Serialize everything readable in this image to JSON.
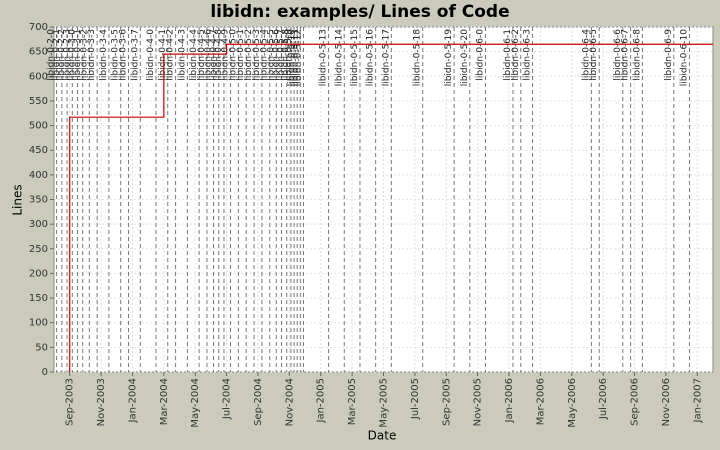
{
  "chart_data": {
    "type": "step",
    "title": "libidn: examples/ Lines of Code",
    "x_label": "Date",
    "y_label": "Lines",
    "series": [
      {
        "name": "Lines",
        "color": "#cc0000",
        "x": [
          "2003-09",
          "2003-09",
          "2004-03",
          "2004-07",
          "2007-02"
        ],
        "values": [
          0,
          517,
          645,
          665,
          665
        ]
      }
    ],
    "xlim": [
      "2003-08",
      "2007-02"
    ],
    "ylim": [
      0,
      700
    ],
    "yticks": [
      0,
      50,
      100,
      150,
      200,
      250,
      300,
      350,
      400,
      450,
      500,
      550,
      600,
      650,
      700
    ],
    "xticks": [
      {
        "value": "2003-09",
        "label": "Sep-2003"
      },
      {
        "value": "2003-11",
        "label": "Nov-2003"
      },
      {
        "value": "2004-01",
        "label": "Jan-2004"
      },
      {
        "value": "2004-03",
        "label": "Mar-2004"
      },
      {
        "value": "2004-05",
        "label": "May-2004"
      },
      {
        "value": "2004-07",
        "label": "Jul-2004"
      },
      {
        "value": "2004-09",
        "label": "Sep-2004"
      },
      {
        "value": "2004-11",
        "label": "Nov-2004"
      },
      {
        "value": "2005-01",
        "label": "Jan-2005"
      },
      {
        "value": "2005-03",
        "label": "Mar-2005"
      },
      {
        "value": "2005-05",
        "label": "May-2005"
      },
      {
        "value": "2005-07",
        "label": "Jul-2005"
      },
      {
        "value": "2005-09",
        "label": "Sep-2005"
      },
      {
        "value": "2005-11",
        "label": "Nov-2005"
      },
      {
        "value": "2006-01",
        "label": "Jan-2006"
      },
      {
        "value": "2006-03",
        "label": "Mar-2006"
      },
      {
        "value": "2006-05",
        "label": "May-2006"
      },
      {
        "value": "2006-07",
        "label": "Jul-2006"
      },
      {
        "value": "2006-09",
        "label": "Sep-2006"
      },
      {
        "value": "2006-11",
        "label": "Nov-2006"
      },
      {
        "value": "2007-01",
        "label": "Jan-2007"
      }
    ],
    "grid": true,
    "tags": [
      {
        "label": "libidn-0-2-0",
        "x": "2003-08"
      },
      {
        "label": "libidn-0-2-1",
        "x": "2003-08"
      },
      {
        "label": "libidn-0-2-2",
        "x": "2003-08"
      },
      {
        "label": "libidn-0-2-3",
        "x": "2003-09"
      },
      {
        "label": "libidn-0-3-0",
        "x": "2003-09"
      },
      {
        "label": "libidn-0-3-1",
        "x": "2003-09"
      },
      {
        "label": "libidn-0-3-2",
        "x": "2003-10"
      },
      {
        "label": "libidn-0-3-3",
        "x": "2003-10"
      },
      {
        "label": "libidn-0-3-4",
        "x": "2003-11"
      },
      {
        "label": "libidn-0-3-5",
        "x": "2003-12"
      },
      {
        "label": "libidn-0-3-6",
        "x": "2003-12"
      },
      {
        "label": "libidn-0-3-7",
        "x": "2004-01"
      },
      {
        "label": "libidn-0-4-0",
        "x": "2004-02"
      },
      {
        "label": "libidn-0-4-1",
        "x": "2004-03"
      },
      {
        "label": "libidn-0-4-2",
        "x": "2004-03"
      },
      {
        "label": "libidn-0-4-3",
        "x": "2004-04"
      },
      {
        "label": "libidn-0-4-4",
        "x": "2004-05"
      },
      {
        "label": "libidn-0-4-5",
        "x": "2004-05"
      },
      {
        "label": "libidn-0-4-6",
        "x": "2004-06"
      },
      {
        "label": "libidn-0-4-7",
        "x": "2004-06"
      },
      {
        "label": "libidn-0-4-8",
        "x": "2004-06"
      },
      {
        "label": "libidn-0-4-9",
        "x": "2004-07"
      },
      {
        "label": "libidn-0-5-0",
        "x": "2004-07"
      },
      {
        "label": "libidn-0-5-1",
        "x": "2004-08"
      },
      {
        "label": "libidn-0-5-2",
        "x": "2004-08"
      },
      {
        "label": "libidn-0-5-3",
        "x": "2004-09"
      },
      {
        "label": "libidn-0-5-4",
        "x": "2004-09"
      },
      {
        "label": "libidn-0-5-5",
        "x": "2004-10"
      },
      {
        "label": "libidn-0-5-6",
        "x": "2004-10"
      },
      {
        "label": "libidn-0-5-7",
        "x": "2004-10"
      },
      {
        "label": "libidn-0-5-8",
        "x": "2004-11"
      },
      {
        "label": "libidn-0-5-9",
        "x": "2004-11"
      },
      {
        "label": "libidn-0-5-10",
        "x": "2004-11"
      },
      {
        "label": "libidn-0-5-11",
        "x": "2004-11"
      },
      {
        "label": "libidn-0-5-12",
        "x": "2004-11"
      },
      {
        "label": "libidn-0-5-13",
        "x": "2005-01"
      },
      {
        "label": "libidn-0-5-14",
        "x": "2005-02"
      },
      {
        "label": "libidn-0-5-15",
        "x": "2005-03"
      },
      {
        "label": "libidn-0-5-16",
        "x": "2005-04"
      },
      {
        "label": "libidn-0-5-17",
        "x": "2005-05"
      },
      {
        "label": "libidn-0-5-18",
        "x": "2005-07"
      },
      {
        "label": "libidn-0-5-19",
        "x": "2005-09"
      },
      {
        "label": "libidn-0-5-20",
        "x": "2005-10"
      },
      {
        "label": "libidn-0-6-0",
        "x": "2005-11"
      },
      {
        "label": "libidn-0-6-1",
        "x": "2006-01"
      },
      {
        "label": "libidn-0-6-2",
        "x": "2006-01"
      },
      {
        "label": "libidn-0-6-3",
        "x": "2006-02"
      },
      {
        "label": "libidn-0-6-4",
        "x": "2006-06"
      },
      {
        "label": "libidn-0-6-5",
        "x": "2006-06"
      },
      {
        "label": "libidn-0-6-6",
        "x": "2006-08"
      },
      {
        "label": "libidn-0-6-7",
        "x": "2006-08"
      },
      {
        "label": "libidn-0-6-8",
        "x": "2006-09"
      },
      {
        "label": "libidn-0-6-9",
        "x": "2006-11"
      },
      {
        "label": "libidn-0-6-10",
        "x": "2006-12"
      }
    ]
  }
}
